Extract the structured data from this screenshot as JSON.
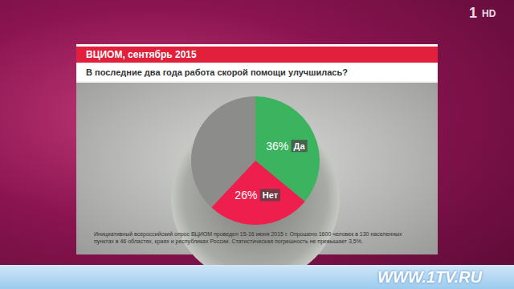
{
  "chart_data": {
    "type": "pie",
    "title": "ВЦИОМ, сентябрь 2015",
    "subtitle": "В последние два года работа скорой помощи улучшилась?",
    "categories": [
      "Да",
      "Нет",
      null
    ],
    "values": [
      36,
      26,
      38
    ],
    "value_labels": [
      "36%",
      "26%",
      null
    ],
    "colors": [
      "#3cb35f",
      "#ee1f4d",
      "#8c8c8a"
    ],
    "data_labels": true,
    "annotations": [
      "Инициативный всероссийский опрос ВЦИОМ проведен 15-16 июня 2015 г. Опрошено 1600 человек в 130 населенных пунктах в 46 областях, краях и республиках России. Статистическая погрешность не превышает 3,5%.",
      "WWW.1TV.RU",
      "1",
      "HD"
    ]
  }
}
